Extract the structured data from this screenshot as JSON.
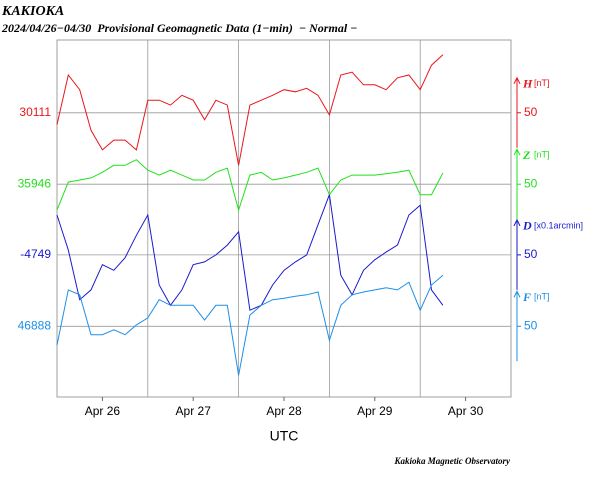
{
  "chart_data": {
    "type": "line",
    "title": "KAKIOKA",
    "subtitle": "2024/04/26−04/30  Provisional Geomagnetic Data (1−min)  − Normal −",
    "x_label": "UTC",
    "footer": "Kakioka Magnetic Observatory",
    "xlim": [
      0,
      120
    ],
    "xticks": [
      {
        "value": 12,
        "label": "Apr 26"
      },
      {
        "value": 36,
        "label": "Apr 27"
      },
      {
        "value": 60,
        "label": "Apr 28"
      },
      {
        "value": 84,
        "label": "Apr 29"
      },
      {
        "value": 108,
        "label": "Apr 30"
      }
    ],
    "x_minor_ticks": [
      24,
      48,
      72,
      96
    ],
    "grid": true,
    "x": [
      0,
      3,
      6,
      9,
      12,
      15,
      18,
      21,
      24,
      27,
      30,
      33,
      36,
      39,
      42,
      45,
      48,
      51,
      54,
      57,
      60,
      63,
      66,
      69,
      72,
      75,
      78,
      81,
      84,
      87,
      90,
      93,
      96,
      99,
      102
    ],
    "series": [
      {
        "name": "H",
        "unit": "[nT]",
        "color": "#e8161b",
        "ylim": [
          29705,
          30215
        ],
        "yticks": [
          30111
        ],
        "scale": 50,
        "values": [
          30094,
          30165,
          30144,
          30086,
          30058,
          30072,
          30072,
          30058,
          30129,
          30129,
          30122,
          30136,
          30129,
          30101,
          30129,
          30122,
          30036,
          30122,
          30129,
          30136,
          30144,
          30141,
          30146,
          30136,
          30108,
          30165,
          30169,
          30151,
          30151,
          30144,
          30161,
          30165,
          30144,
          30179,
          30194
        ]
      },
      {
        "name": "Z",
        "unit": "[nT]",
        "color": "#22e01c",
        "ylim": [
          35642,
          36152
        ],
        "yticks": [
          35946
        ],
        "scale": 50,
        "values": [
          35909,
          35949,
          35952,
          35955,
          35963,
          35973,
          35973,
          35981,
          35966,
          35959,
          35966,
          35959,
          35952,
          35952,
          35963,
          35969,
          35909,
          35959,
          35963,
          35952,
          35955,
          35959,
          35963,
          35969,
          35931,
          35952,
          35959,
          35959,
          35959,
          35961,
          35963,
          35966,
          35931,
          35931,
          35962
        ]
      },
      {
        "name": "D",
        "unit": "[x0.1arcmin]",
        "color": "#1a1acf",
        "ylim": [
          -4952,
          -4442
        ],
        "yticks": [
          -4749
        ],
        "scale": 50,
        "values": [
          -4692,
          -4742,
          -4813,
          -4799,
          -4763,
          -4771,
          -4753,
          -4721,
          -4692,
          -4792,
          -4821,
          -4799,
          -4763,
          -4759,
          -4749,
          -4735,
          -4716,
          -4828,
          -4821,
          -4792,
          -4771,
          -4759,
          -4749,
          -4706,
          -4663,
          -4778,
          -4806,
          -4771,
          -4756,
          -4745,
          -4735,
          -4692,
          -4678,
          -4799,
          -4821
        ]
      },
      {
        "name": "F",
        "unit": "[nT]",
        "color": "#1e8fe6",
        "ylim": [
          46787,
          47297
        ],
        "yticks": [
          46888
        ],
        "scale": 50,
        "values": [
          46861,
          46940,
          46933,
          46876,
          46876,
          46883,
          46876,
          46890,
          46900,
          46926,
          46918,
          46918,
          46918,
          46897,
          46918,
          46918,
          46818,
          46904,
          46918,
          46926,
          46928,
          46931,
          46933,
          46937,
          46868,
          46918,
          46933,
          46937,
          46940,
          46943,
          46940,
          46951,
          46911,
          46947,
          46961
        ]
      }
    ]
  }
}
